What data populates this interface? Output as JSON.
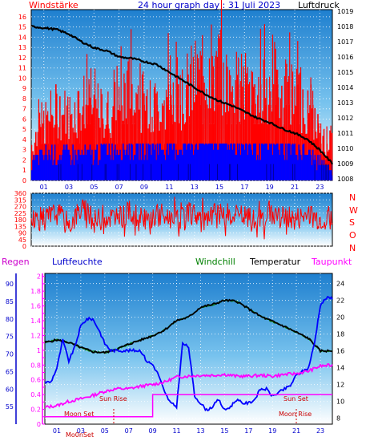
{
  "header": {
    "left": "Windstärke",
    "title": "24 hour graph day : 31 Juli 2023",
    "right": "Luftdruck"
  },
  "middle": {
    "compass": [
      "N",
      "W",
      "S",
      "O",
      "N"
    ]
  },
  "bottom_header": {
    "regen": "Regen",
    "luftfeuchte": "Luftfeuchte",
    "windchill": "Windchill",
    "temperatur": "Temperatur",
    "taupunkt": "Taupunkt"
  },
  "annotations": {
    "moon_set": "Moon Set",
    "sun_rise": "Sun Rise",
    "sun_set": "Sun Set",
    "moon_rise": "Moon Rise",
    "bottom_axis_fragment": "Mo0nSet"
  },
  "colors": {
    "red": "#ff0000",
    "blue": "#0000ff",
    "black": "#000000",
    "magenta": "#ff00ff",
    "green": "#008000",
    "navy": "#000080",
    "sky_top": "#2f92d6",
    "sky_bottom": "#ffffff"
  },
  "chart_data": [
    {
      "type": "bar",
      "title": "24 hour graph day : 31 Juli 2023",
      "ylabel_left": "Windstärke",
      "ylabel_right": "Luftdruck",
      "xticks": [
        "01",
        "03",
        "05",
        "07",
        "09",
        "11",
        "13",
        "15",
        "17",
        "19",
        "21",
        "23"
      ],
      "yticks_left": [
        0,
        1,
        2,
        3,
        4,
        5,
        6,
        7,
        8,
        9,
        10,
        11,
        12,
        13,
        14,
        15,
        16
      ],
      "yticks_right": [
        1008,
        1009,
        1010,
        1011,
        1012,
        1013,
        1014,
        1015,
        1016,
        1017,
        1018,
        1019
      ],
      "ylim_left": [
        0,
        16.7
      ],
      "ylim_right": [
        1007.9,
        1019.1
      ],
      "grid": true,
      "series": [
        {
          "kind": "gust-bars",
          "color": "red",
          "x": [
            0,
            1,
            2,
            3,
            4,
            5,
            6,
            7,
            8,
            9,
            10,
            11,
            12,
            13,
            14,
            15,
            16,
            17,
            18,
            19,
            20,
            21,
            22,
            23,
            24
          ],
          "values": [
            5,
            8,
            10,
            9,
            11,
            10,
            9,
            12,
            13,
            11,
            10,
            13,
            12,
            14,
            16,
            15,
            13,
            13,
            13,
            14,
            13,
            12,
            11,
            6,
            5
          ]
        },
        {
          "kind": "wind-bars",
          "color": "blue",
          "x": [
            0,
            1,
            2,
            3,
            4,
            5,
            6,
            7,
            8,
            9,
            10,
            11,
            12,
            13,
            14,
            15,
            16,
            17,
            18,
            19,
            20,
            21,
            22,
            23,
            24
          ],
          "values": [
            2,
            3,
            3,
            3,
            3,
            3,
            4,
            4,
            4,
            4,
            4,
            4,
            4,
            5,
            5,
            5,
            5,
            4,
            4,
            4,
            4,
            4,
            3,
            2,
            1
          ]
        },
        {
          "kind": "pressure-line",
          "color": "black",
          "x": [
            0,
            1,
            2,
            3,
            4,
            5,
            6,
            7,
            8,
            9,
            10,
            11,
            12,
            13,
            14,
            15,
            16,
            17,
            18,
            19,
            20,
            21,
            22,
            23,
            24
          ],
          "values": [
            1018.0,
            1017.9,
            1017.8,
            1017.5,
            1017.0,
            1016.6,
            1016.4,
            1016.0,
            1015.9,
            1015.7,
            1015.5,
            1015.0,
            1014.5,
            1014.0,
            1013.5,
            1013.1,
            1012.8,
            1012.4,
            1012.0,
            1011.7,
            1011.3,
            1011.0,
            1010.6,
            1009.9,
            1009.0
          ]
        }
      ]
    },
    {
      "type": "line",
      "title": "",
      "ylabel": "",
      "yticks": [
        0,
        45,
        90,
        135,
        180,
        225,
        270,
        315,
        360
      ],
      "ylim": [
        0,
        360
      ],
      "grid": true,
      "series": [
        {
          "kind": "wind-direction",
          "color": "red",
          "x": [
            0,
            1,
            2,
            3,
            4,
            5,
            6,
            7,
            8,
            9,
            10,
            11,
            12,
            13,
            14,
            15,
            16,
            17,
            18,
            19,
            20,
            21,
            22,
            23,
            24
          ],
          "values": [
            200,
            180,
            230,
            150,
            260,
            170,
            210,
            190,
            240,
            160,
            220,
            200,
            180,
            230,
            170,
            250,
            190,
            210,
            160,
            240,
            200,
            180,
            220,
            190,
            200
          ]
        }
      ]
    },
    {
      "type": "line",
      "title": "",
      "xticks": [
        "01",
        "03",
        "05",
        "07",
        "09",
        "11",
        "13",
        "15",
        "17",
        "19",
        "21",
        "23"
      ],
      "yticks_regen": [
        0,
        0.1,
        0.2,
        0.3,
        0.4,
        0.5,
        0.6,
        0.7,
        0.8,
        0.9,
        1,
        1.1,
        1.2,
        1.3,
        1.4,
        1.5,
        1.6,
        1.7,
        1.8,
        1.9,
        2
      ],
      "ylim_regen": [
        0,
        2.04
      ],
      "yticks_humidity": [
        55,
        60,
        65,
        70,
        75,
        80,
        85,
        90
      ],
      "ylim_humidity": [
        50,
        93
      ],
      "yticks_temperature": [
        8,
        10,
        12,
        14,
        16,
        18,
        20,
        22,
        24
      ],
      "ylim_temperature": [
        7.3,
        25.2
      ],
      "grid": true,
      "series": [
        {
          "name": "Luftfeuchte",
          "color": "blue",
          "axis": "humidity",
          "x": [
            0,
            0.5,
            1,
            1.5,
            2,
            2.5,
            3,
            3.5,
            4,
            4.5,
            5,
            5.5,
            6,
            6.5,
            7,
            7.5,
            8,
            8.5,
            9,
            9.5,
            10,
            10.5,
            11,
            11.5,
            12,
            12.5,
            13,
            13.5,
            14,
            14.5,
            15,
            15.5,
            16,
            16.5,
            17,
            17.5,
            18,
            18.5,
            19,
            19.5,
            20,
            20.5,
            21,
            21.5,
            22,
            22.5,
            23,
            23.5,
            24
          ],
          "values": [
            62,
            62,
            66,
            74,
            68,
            72,
            78,
            80,
            80,
            77,
            73,
            71,
            71,
            71,
            71,
            71,
            71,
            68,
            67,
            64,
            59,
            56,
            55,
            73,
            72,
            58,
            56,
            54,
            55,
            57,
            54,
            55,
            57,
            56,
            56,
            57,
            60,
            60,
            58,
            59,
            60,
            61,
            64,
            65,
            66,
            73,
            84,
            86,
            86
          ]
        },
        {
          "name": "Temperatur",
          "color": "black",
          "axis": "temperature",
          "x": [
            0,
            1,
            2,
            3,
            4,
            5,
            6,
            7,
            8,
            9,
            10,
            11,
            12,
            13,
            14,
            15,
            16,
            17,
            18,
            19,
            20,
            21,
            22,
            23,
            24
          ],
          "values": [
            17.0,
            17.3,
            17.0,
            16.4,
            15.9,
            15.8,
            16.2,
            16.8,
            17.3,
            17.8,
            18.5,
            19.6,
            20.0,
            21.2,
            21.5,
            22.0,
            21.9,
            21.0,
            20.1,
            19.5,
            18.9,
            18.2,
            17.5,
            16.0,
            16.0
          ]
        },
        {
          "name": "Windchill",
          "color": "green",
          "axis": "temperature",
          "x": [
            0,
            1,
            2,
            3,
            4,
            5,
            6,
            7,
            8,
            9,
            10,
            11,
            12,
            13,
            14,
            15,
            16,
            17,
            18,
            19,
            20,
            21,
            22,
            23,
            24
          ],
          "values": [
            17.0,
            17.3,
            17.0,
            16.4,
            15.9,
            15.8,
            16.2,
            16.8,
            17.3,
            17.8,
            18.5,
            19.6,
            20.0,
            21.2,
            21.5,
            22.0,
            21.9,
            21.0,
            20.1,
            19.5,
            18.9,
            18.2,
            17.5,
            16.0,
            16.0
          ]
        },
        {
          "name": "Taupunkt",
          "color": "magenta",
          "axis": "temperature",
          "x": [
            0,
            1,
            2,
            3,
            4,
            5,
            6,
            7,
            8,
            9,
            10,
            11,
            12,
            13,
            14,
            15,
            16,
            17,
            18,
            19,
            20,
            21,
            22,
            23,
            24
          ],
          "values": [
            9.3,
            9.5,
            10.0,
            10.3,
            10.7,
            11.2,
            11.5,
            11.5,
            11.8,
            12.0,
            12.3,
            12.9,
            13.0,
            13.1,
            13.1,
            13.2,
            13.0,
            13.0,
            13.1,
            13.0,
            13.2,
            13.3,
            13.6,
            14.2,
            14.3
          ]
        },
        {
          "name": "Regen",
          "color": "magenta",
          "axis": "regen",
          "kind": "step",
          "x": [
            0,
            9,
            9,
            24
          ],
          "values": [
            0.1,
            0.1,
            0.4,
            0.4
          ]
        }
      ]
    }
  ]
}
